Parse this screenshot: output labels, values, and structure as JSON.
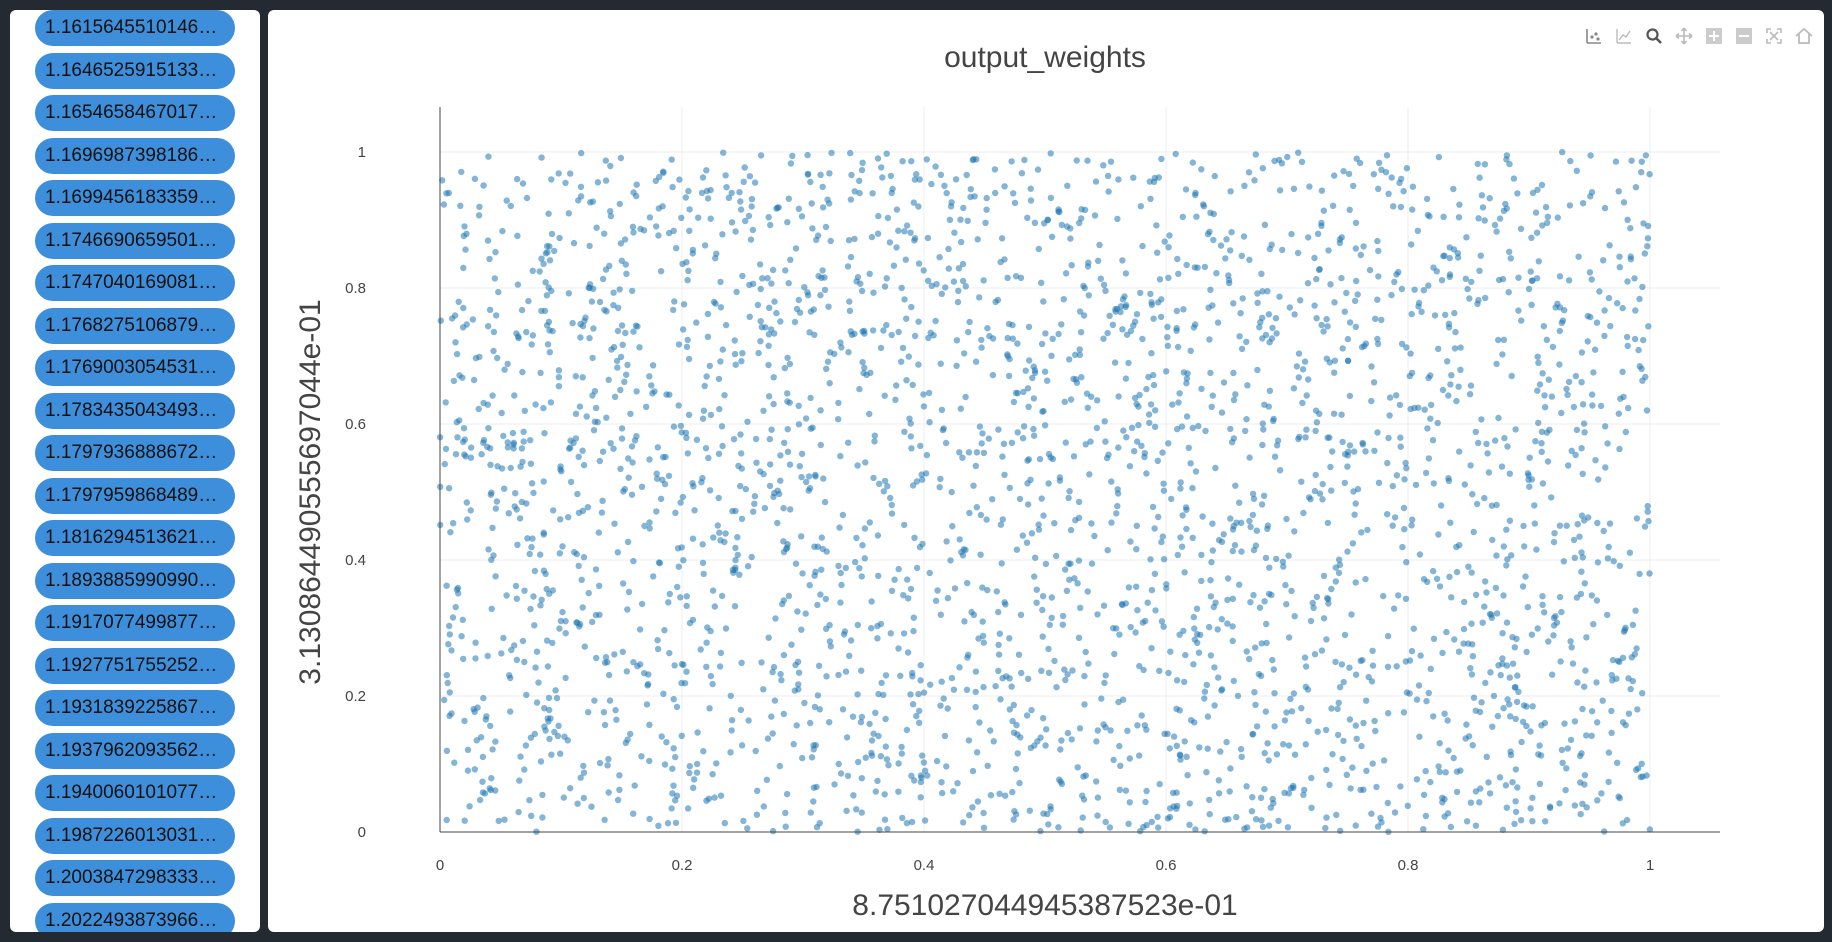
{
  "sidebar": {
    "items": [
      "1.1615645510146…",
      "1.1646525915133…",
      "1.1654658467017…",
      "1.1696987398186…",
      "1.1699456183359…",
      "1.1746690659501…",
      "1.1747040169081…",
      "1.1768275106879…",
      "1.1769003054531…",
      "1.1783435043493…",
      "1.1797936888672…",
      "1.1797959868489…",
      "1.1816294513621…",
      "1.1893885990990…",
      "1.1917077499877…",
      "1.1927751755252…",
      "1.1931839225867…",
      "1.1937962093562…",
      "1.1940060101077…",
      "1.1987226013031…",
      "1.2003847298333…",
      "1.2022493873966…"
    ]
  },
  "modebar": {
    "icons": [
      "compare-points-icon",
      "closest-point-icon",
      "zoom-icon",
      "pan-icon",
      "zoom-in-icon",
      "zoom-out-icon",
      "autoscale-icon",
      "reset-axes-icon"
    ]
  },
  "colors": {
    "marker": "#1f77b4",
    "pill": "#3d8fdb",
    "background": "#232a31"
  },
  "chart_data": {
    "type": "scatter",
    "title": "output_weights",
    "xlabel": "8.751027044945387523e-01",
    "ylabel": "3.130864490555697044e-01",
    "xlim": [
      0,
      1
    ],
    "ylim": [
      0,
      1
    ],
    "xticks": [
      0,
      0.2,
      0.4,
      0.6,
      0.8,
      1
    ],
    "yticks": [
      0,
      0.2,
      0.4,
      0.6,
      0.8,
      1
    ],
    "xtick_labels": [
      "0",
      "0.2",
      "0.4",
      "0.6",
      "0.8",
      "1"
    ],
    "ytick_labels": [
      "0",
      "0.2",
      "0.4",
      "0.6",
      "0.8",
      "1"
    ],
    "grid": true,
    "series": [
      {
        "name": "output_weights",
        "distribution": "uniform",
        "count": 3000,
        "seed": 12345,
        "x_range": [
          0,
          1
        ],
        "y_range": [
          0,
          1
        ],
        "marker_opacity": 0.55
      }
    ]
  }
}
